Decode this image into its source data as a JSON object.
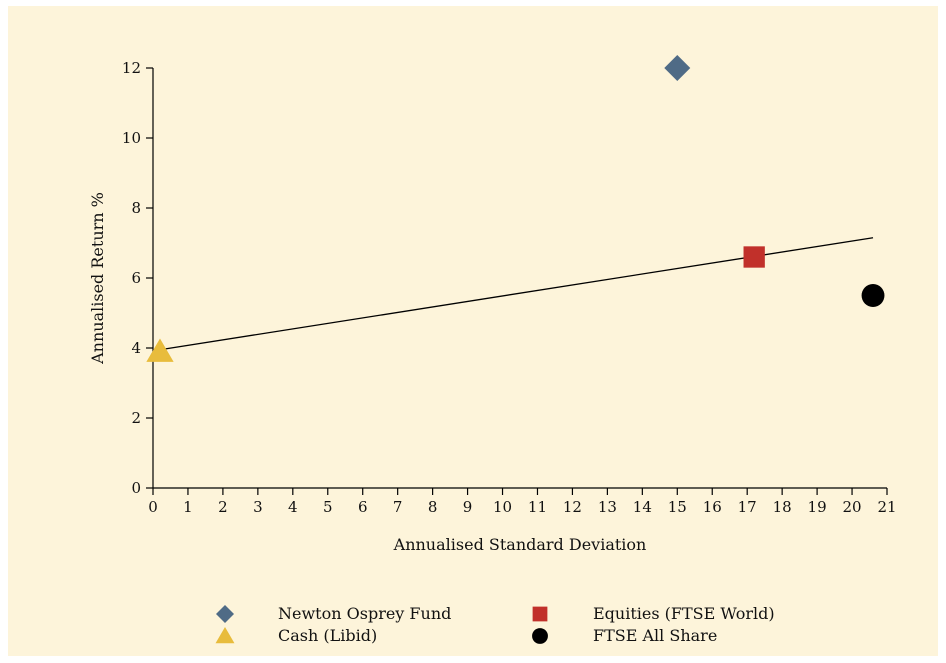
{
  "chart_data": {
    "type": "scatter",
    "xlabel": "Annualised Standard Deviation",
    "ylabel": "Annualised Return %",
    "xlim": [
      0,
      21
    ],
    "ylim": [
      0,
      12
    ],
    "x_ticks": [
      0,
      1,
      2,
      3,
      4,
      5,
      6,
      7,
      8,
      9,
      10,
      11,
      12,
      13,
      14,
      15,
      16,
      17,
      18,
      19,
      20,
      21
    ],
    "y_ticks": [
      0,
      2,
      4,
      6,
      8,
      10,
      12
    ],
    "grid": false,
    "legend_position": "bottom",
    "series": [
      {
        "name": "Newton Osprey Fund",
        "marker": "diamond",
        "color": "#4f6b86",
        "x": 15.0,
        "y": 12.0
      },
      {
        "name": "Equities (FTSE World)",
        "marker": "square",
        "color": "#c1302a",
        "x": 17.2,
        "y": 6.6
      },
      {
        "name": "Cash (Libid)",
        "marker": "triangle",
        "color": "#e8bc3c",
        "x": 0.2,
        "y": 3.9
      },
      {
        "name": "FTSE All Share",
        "marker": "circle",
        "color": "#000000",
        "x": 20.6,
        "y": 5.5
      }
    ],
    "trendline": {
      "x": [
        0.2,
        20.6
      ],
      "y": [
        3.95,
        7.15
      ],
      "color": "#000000"
    }
  }
}
